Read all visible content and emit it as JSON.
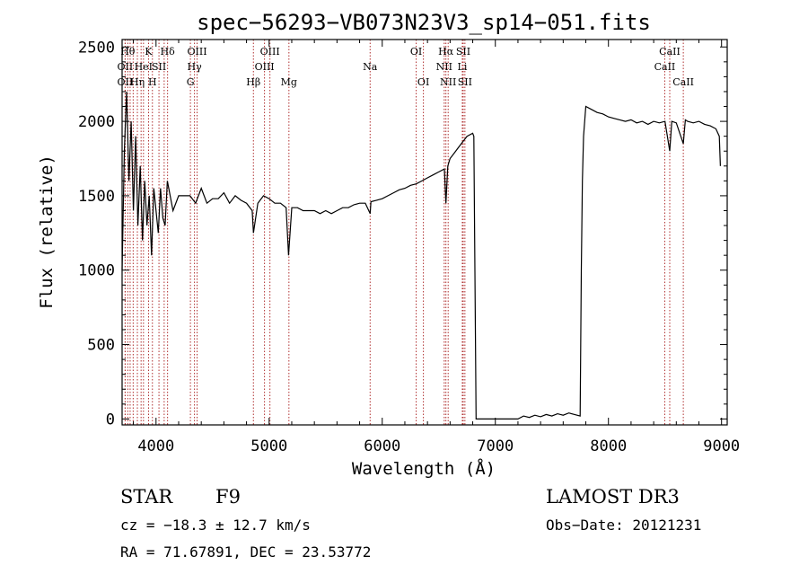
{
  "chart_data": {
    "type": "line",
    "title": "spec−56293−VB073N23V3_sp14−051.fits",
    "xlabel": "Wavelength (Å)",
    "ylabel": "Flux (relative)",
    "xlim": [
      3700,
      9050
    ],
    "ylim": [
      -40,
      2550
    ],
    "x_ticks": [
      4000,
      5000,
      6000,
      7000,
      8000,
      9000
    ],
    "x_tick_labels": [
      "4000",
      "5000",
      "6000",
      "7000",
      "8000",
      "9000"
    ],
    "y_ticks": [
      0,
      500,
      1000,
      1500,
      2000,
      2500
    ],
    "y_tick_labels": [
      "0",
      "500",
      "1000",
      "1500",
      "2000",
      "2500"
    ],
    "grid": false,
    "line_color": "#000000",
    "marker_color": "#b03030",
    "series": [
      {
        "x": [
          3700,
          3720,
          3740,
          3760,
          3780,
          3800,
          3820,
          3840,
          3860,
          3880,
          3900,
          3920,
          3940,
          3960,
          3980,
          4000,
          4020,
          4040,
          4060,
          4080,
          4100,
          4150,
          4200,
          4250,
          4300,
          4350,
          4400,
          4450,
          4500,
          4550,
          4600,
          4650,
          4700,
          4750,
          4800,
          4850,
          4861,
          4900,
          4950,
          5000,
          5050,
          5100,
          5150,
          5172,
          5200,
          5250,
          5300,
          5350,
          5400,
          5450,
          5500,
          5550,
          5600,
          5650,
          5700,
          5750,
          5800,
          5850,
          5893,
          5900,
          5950,
          6000,
          6050,
          6100,
          6150,
          6200,
          6250,
          6300,
          6350,
          6400,
          6450,
          6500,
          6550,
          6563,
          6580,
          6600,
          6650,
          6700,
          6750,
          6800,
          6810,
          6830,
          6900,
          7000,
          7100,
          7200,
          7250,
          7300,
          7350,
          7400,
          7450,
          7500,
          7550,
          7600,
          7650,
          7700,
          7750,
          7760,
          7770,
          7780,
          7800,
          7850,
          7900,
          7950,
          8000,
          8050,
          8100,
          8150,
          8200,
          8250,
          8300,
          8350,
          8400,
          8450,
          8500,
          8542,
          8560,
          8600,
          8662,
          8680,
          8700,
          8750,
          8800,
          8850,
          8900,
          8950,
          8980,
          8990
        ],
        "y": [
          1000,
          1800,
          2200,
          1600,
          2000,
          1400,
          1900,
          1300,
          1700,
          1200,
          1600,
          1300,
          1500,
          1100,
          1550,
          1400,
          1250,
          1550,
          1350,
          1300,
          1600,
          1400,
          1500,
          1500,
          1500,
          1450,
          1550,
          1450,
          1480,
          1480,
          1520,
          1450,
          1500,
          1470,
          1450,
          1400,
          1250,
          1450,
          1500,
          1480,
          1450,
          1450,
          1420,
          1100,
          1420,
          1420,
          1400,
          1400,
          1400,
          1380,
          1400,
          1380,
          1400,
          1420,
          1420,
          1440,
          1450,
          1450,
          1380,
          1460,
          1470,
          1480,
          1500,
          1520,
          1540,
          1550,
          1570,
          1580,
          1600,
          1620,
          1640,
          1660,
          1680,
          1450,
          1700,
          1750,
          1800,
          1850,
          1900,
          1920,
          1900,
          0,
          0,
          0,
          0,
          0,
          20,
          10,
          25,
          15,
          30,
          20,
          35,
          25,
          40,
          30,
          20,
          1000,
          1600,
          1900,
          2100,
          2080,
          2060,
          2050,
          2030,
          2020,
          2010,
          2000,
          2010,
          1990,
          2000,
          1980,
          2000,
          1990,
          2000,
          1800,
          2000,
          1990,
          1850,
          2010,
          2000,
          1990,
          2000,
          1980,
          1970,
          1950,
          1900,
          1700
        ]
      }
    ],
    "line_markers": [
      {
        "x": 3750,
        "label": "Hθ",
        "row": 0
      },
      {
        "x": 3727,
        "label": "OII",
        "row": 1
      },
      {
        "x": 3727,
        "label": "OII",
        "row": 2
      },
      {
        "x": 3771,
        "label": "",
        "row": -1
      },
      {
        "x": 3798,
        "label": "",
        "row": -1
      },
      {
        "x": 3835,
        "label": "Hη",
        "row": 2
      },
      {
        "x": 3868,
        "label": "",
        "row": -1
      },
      {
        "x": 3889,
        "label": "HeI",
        "row": 1
      },
      {
        "x": 3934,
        "label": "K",
        "row": 0
      },
      {
        "x": 3968,
        "label": "H",
        "row": 2
      },
      {
        "x": 4026,
        "label": "SII",
        "row": 1
      },
      {
        "x": 4072,
        "label": "",
        "row": -1
      },
      {
        "x": 4102,
        "label": "Hδ",
        "row": 0
      },
      {
        "x": 4304,
        "label": "G",
        "row": 2
      },
      {
        "x": 4340,
        "label": "Hγ",
        "row": 1
      },
      {
        "x": 4363,
        "label": "OIII",
        "row": 0
      },
      {
        "x": 4861,
        "label": "Hβ",
        "row": 2
      },
      {
        "x": 4959,
        "label": "OIII",
        "row": 1
      },
      {
        "x": 5007,
        "label": "OIII",
        "row": 0
      },
      {
        "x": 5175,
        "label": "Mg",
        "row": 2
      },
      {
        "x": 5893,
        "label": "Na",
        "row": 1
      },
      {
        "x": 6300,
        "label": "OI",
        "row": 0
      },
      {
        "x": 6364,
        "label": "OI",
        "row": 2
      },
      {
        "x": 6548,
        "label": "NII",
        "row": 1
      },
      {
        "x": 6563,
        "label": "Hα",
        "row": 0
      },
      {
        "x": 6583,
        "label": "NII",
        "row": 2
      },
      {
        "x": 6708,
        "label": "Li",
        "row": 1
      },
      {
        "x": 6716,
        "label": "SII",
        "row": 0
      },
      {
        "x": 6731,
        "label": "SII",
        "row": 2
      },
      {
        "x": 8498,
        "label": "CaII",
        "row": 1
      },
      {
        "x": 8542,
        "label": "CaII",
        "row": 0
      },
      {
        "x": 8662,
        "label": "CaII",
        "row": 2
      }
    ]
  },
  "info": {
    "object_class": "STAR",
    "subclass": "F9",
    "survey": "LAMOST DR3",
    "cz": "cz = −18.3 ± 12.7 km/s",
    "obs_date": "Obs−Date: 20121231",
    "coords": "RA =  71.67891, DEC =  23.53772"
  }
}
